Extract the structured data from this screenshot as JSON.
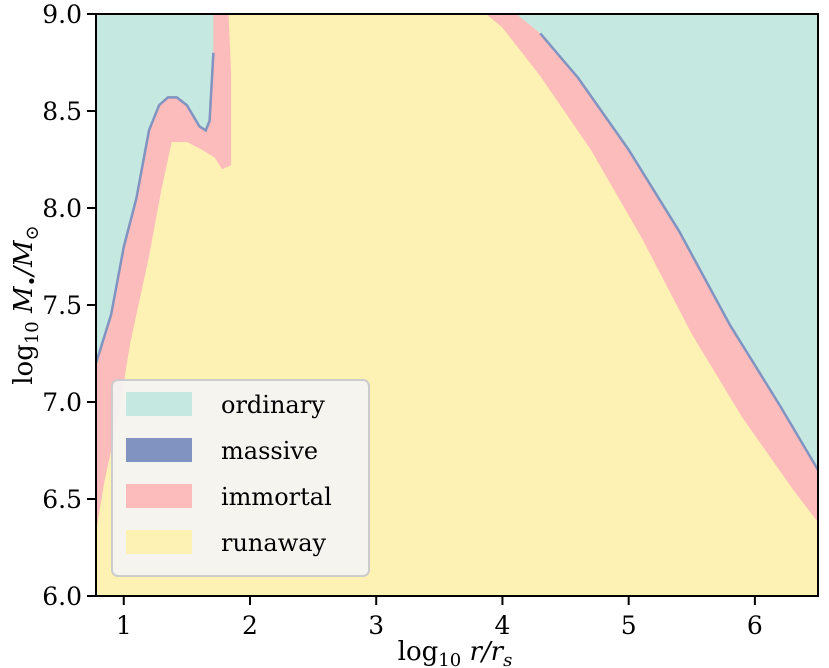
{
  "chart_data": {
    "type": "area",
    "title": "",
    "xlabel": "log10 r/rs",
    "ylabel": "log10 M•/M⊙",
    "xlim": [
      0.78,
      6.5
    ],
    "ylim": [
      6.0,
      9.0
    ],
    "x_ticks": [
      1,
      2,
      3,
      4,
      5,
      6
    ],
    "y_ticks": [
      6.0,
      6.5,
      7.0,
      7.5,
      8.0,
      8.5,
      9.0
    ],
    "x_tick_labels": [
      "1",
      "2",
      "3",
      "4",
      "5",
      "6"
    ],
    "y_tick_labels": [
      "6.0",
      "6.5",
      "7.0",
      "7.5",
      "8.0",
      "8.5",
      "9.0"
    ],
    "grid": false,
    "legend_position": "bottom-left",
    "series": [
      {
        "name": "ordinary",
        "color": "#c5e8e0",
        "regions": [
          [
            [
              0.78,
              9.0
            ],
            [
              1.71,
              9.0
            ],
            [
              1.71,
              8.8
            ],
            [
              1.68,
              8.45
            ],
            [
              1.65,
              8.4
            ],
            [
              1.6,
              8.42
            ],
            [
              1.5,
              8.53
            ],
            [
              1.42,
              8.57
            ],
            [
              1.35,
              8.57
            ],
            [
              1.28,
              8.53
            ],
            [
              1.2,
              8.4
            ],
            [
              1.1,
              8.05
            ],
            [
              1.0,
              7.8
            ],
            [
              0.9,
              7.45
            ],
            [
              0.78,
              7.2
            ]
          ],
          [
            [
              4.11,
              9.0
            ],
            [
              6.5,
              9.0
            ],
            [
              6.5,
              6.65
            ],
            [
              6.2,
              6.98
            ],
            [
              5.8,
              7.4
            ],
            [
              5.4,
              7.88
            ],
            [
              5.0,
              8.3
            ],
            [
              4.6,
              8.67
            ],
            [
              4.3,
              8.9
            ]
          ]
        ]
      },
      {
        "name": "massive",
        "color": "#8093c1",
        "regions": []
      },
      {
        "name": "immortal",
        "color": "#fcbcbc",
        "regions": [
          [
            [
              0.78,
              7.2
            ],
            [
              0.9,
              7.45
            ],
            [
              1.0,
              7.8
            ],
            [
              1.1,
              8.05
            ],
            [
              1.2,
              8.4
            ],
            [
              1.28,
              8.53
            ],
            [
              1.35,
              8.57
            ],
            [
              1.42,
              8.57
            ],
            [
              1.5,
              8.53
            ],
            [
              1.6,
              8.42
            ],
            [
              1.65,
              8.4
            ],
            [
              1.68,
              8.45
            ],
            [
              1.71,
              8.8
            ],
            [
              1.71,
              9.0
            ],
            [
              1.83,
              9.0
            ],
            [
              1.85,
              8.7
            ],
            [
              1.85,
              8.22
            ],
            [
              1.78,
              8.2
            ],
            [
              1.72,
              8.26
            ],
            [
              1.62,
              8.3
            ],
            [
              1.5,
              8.34
            ],
            [
              1.38,
              8.34
            ],
            [
              1.3,
              8.1
            ],
            [
              1.2,
              7.75
            ],
            [
              1.05,
              7.3
            ],
            [
              0.95,
              6.9
            ],
            [
              0.85,
              6.6
            ],
            [
              0.78,
              6.33
            ]
          ],
          [
            [
              3.87,
              9.0
            ],
            [
              4.11,
              9.0
            ],
            [
              4.3,
              8.9
            ],
            [
              4.6,
              8.67
            ],
            [
              5.0,
              8.3
            ],
            [
              5.4,
              7.88
            ],
            [
              5.8,
              7.4
            ],
            [
              6.2,
              6.98
            ],
            [
              6.5,
              6.65
            ],
            [
              6.5,
              6.38
            ],
            [
              6.3,
              6.55
            ],
            [
              5.9,
              6.92
            ],
            [
              5.5,
              7.35
            ],
            [
              5.1,
              7.85
            ],
            [
              4.7,
              8.3
            ],
            [
              4.3,
              8.68
            ],
            [
              4.0,
              8.93
            ]
          ]
        ]
      },
      {
        "name": "runaway",
        "color": "#fdf2b3",
        "regions": []
      }
    ],
    "legend": [
      {
        "label": "ordinary",
        "color": "#c5e8e0"
      },
      {
        "label": "massive",
        "color": "#8093c1"
      },
      {
        "label": "immortal",
        "color": "#fcbcbc"
      },
      {
        "label": "runaway",
        "color": "#fdf2b3"
      }
    ]
  }
}
